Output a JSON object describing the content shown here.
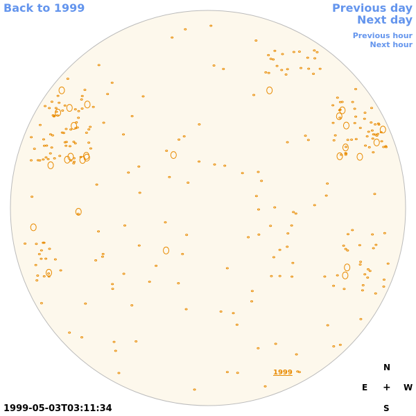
{
  "links": {
    "back": "Back to 1999",
    "previous_day": "Previous day",
    "next_day": "Next day",
    "previous_hour": "Previous hour",
    "next_hour": "Next hour",
    "year_link": "1999"
  },
  "compass": {
    "north": "N",
    "east": "E",
    "center": "+",
    "west": "W",
    "south": "S"
  },
  "timestamp": "1999-05-03T03:11:34"
}
